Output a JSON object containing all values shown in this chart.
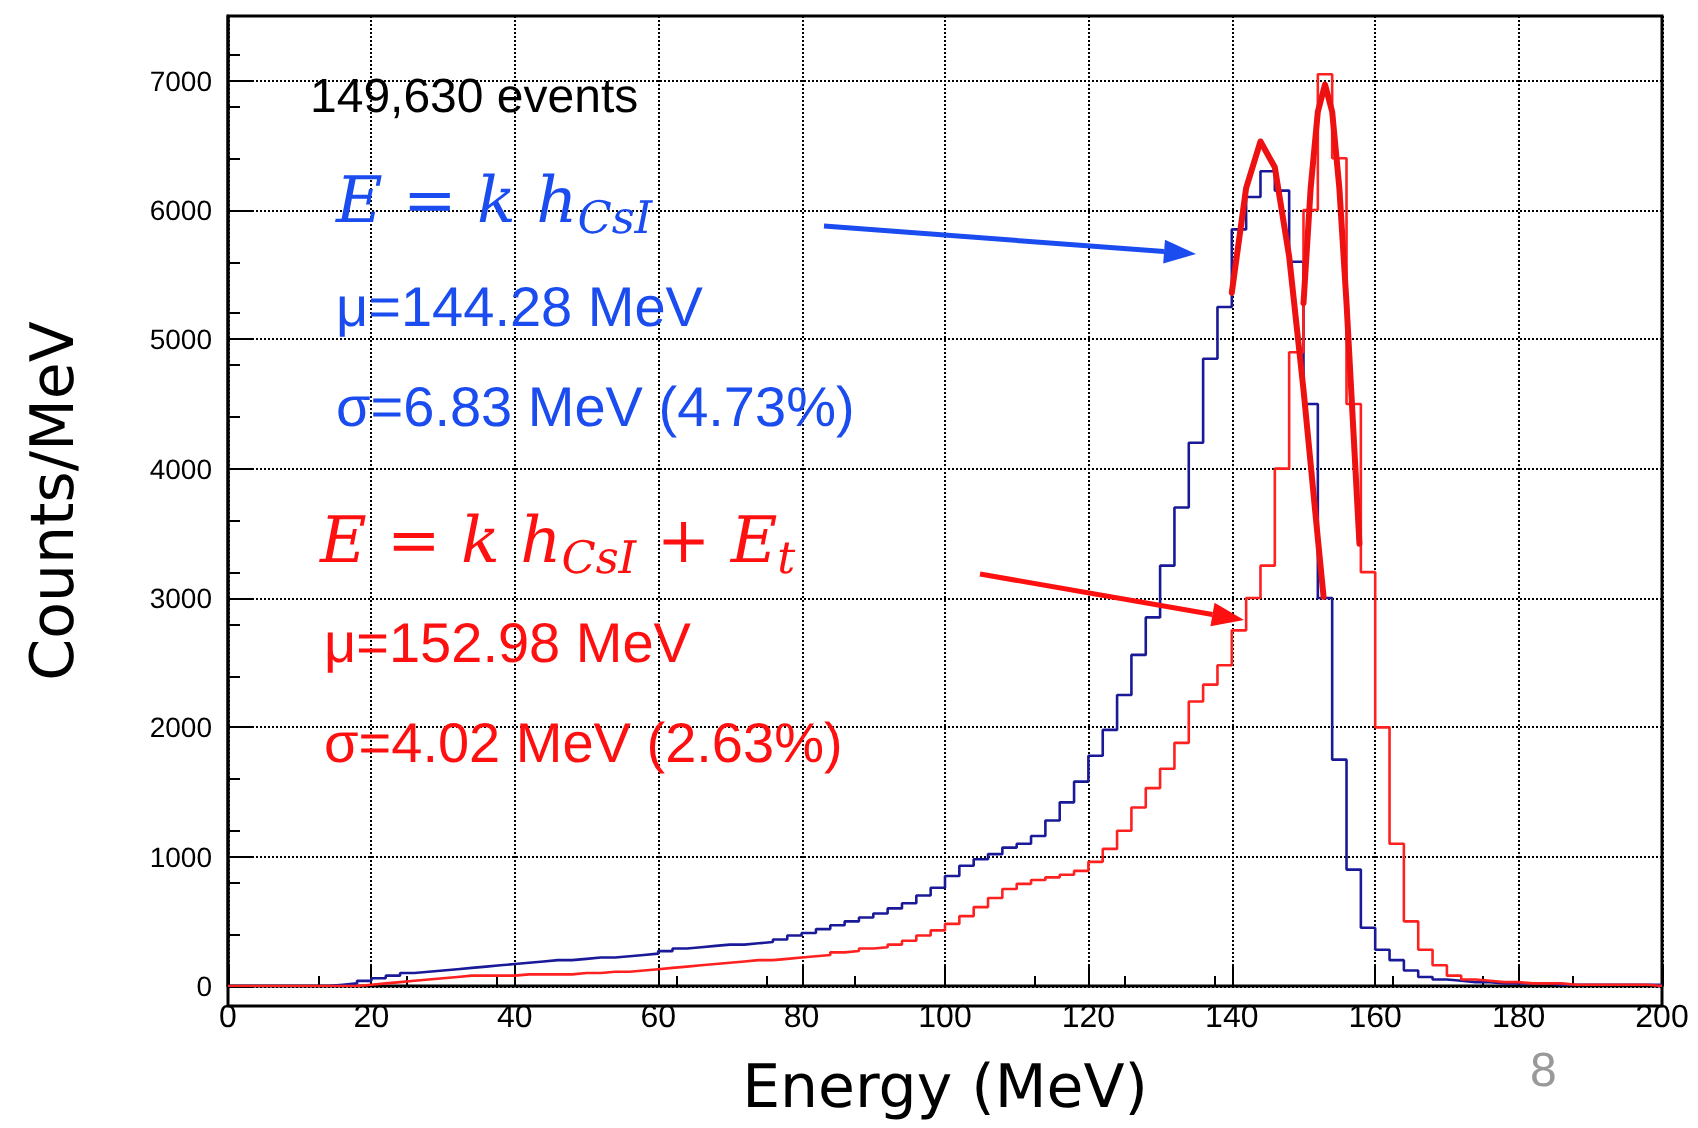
{
  "chart_data": {
    "type": "histogram",
    "xlabel": "Energy (MeV)",
    "ylabel": "Counts/MeV",
    "bins": [
      0,
      2,
      4,
      6,
      8,
      10,
      12,
      14,
      16,
      18,
      20,
      22,
      24,
      26,
      28,
      30,
      32,
      34,
      36,
      38,
      40,
      42,
      44,
      46,
      48,
      50,
      52,
      54,
      56,
      58,
      60,
      62,
      64,
      66,
      68,
      70,
      72,
      74,
      76,
      78,
      80,
      82,
      84,
      86,
      88,
      90,
      92,
      94,
      96,
      98,
      100,
      102,
      104,
      106,
      108,
      110,
      112,
      114,
      116,
      118,
      120,
      122,
      124,
      126,
      128,
      130,
      132,
      134,
      136,
      138,
      140,
      142,
      144,
      146,
      148,
      150,
      152,
      154,
      156,
      158,
      160,
      162,
      164,
      166,
      168,
      170,
      172,
      174,
      176,
      178,
      180,
      182,
      184,
      186,
      188,
      190,
      192,
      194,
      196,
      198,
      200
    ],
    "series": [
      {
        "color": "#1a1a99",
        "values": [
          0,
          0,
          0,
          0,
          0,
          0,
          0,
          10,
          20,
          40,
          60,
          80,
          100,
          110,
          120,
          130,
          140,
          150,
          160,
          170,
          180,
          190,
          200,
          200,
          210,
          220,
          220,
          230,
          240,
          250,
          270,
          290,
          300,
          310,
          320,
          320,
          330,
          340,
          360,
          390,
          410,
          440,
          470,
          500,
          530,
          560,
          600,
          640,
          700,
          760,
          850,
          930,
          980,
          1020,
          1070,
          1100,
          1160,
          1280,
          1420,
          1580,
          1780,
          1980,
          2250,
          2560,
          2850,
          3250,
          3700,
          4200,
          4850,
          5250,
          5850,
          6100,
          6300,
          6150,
          5600,
          4500,
          3000,
          1750,
          900,
          450,
          280,
          200,
          120,
          70,
          50,
          40,
          30,
          30,
          20,
          20,
          20,
          20,
          10,
          10,
          10,
          10,
          10,
          10,
          10,
          10
        ]
      },
      {
        "color": "#ff2020",
        "values": [
          0,
          0,
          0,
          0,
          0,
          0,
          0,
          0,
          0,
          10,
          20,
          30,
          40,
          50,
          60,
          70,
          80,
          80,
          80,
          80,
          90,
          90,
          90,
          90,
          100,
          100,
          110,
          110,
          120,
          130,
          140,
          150,
          160,
          170,
          180,
          190,
          200,
          200,
          210,
          220,
          230,
          240,
          260,
          270,
          290,
          300,
          320,
          350,
          390,
          430,
          480,
          540,
          610,
          680,
          750,
          790,
          820,
          840,
          860,
          890,
          960,
          1060,
          1200,
          1380,
          1530,
          1680,
          1880,
          2200,
          2330,
          2480,
          2750,
          3000,
          3250,
          4000,
          4900,
          6000,
          7050,
          6400,
          4500,
          3200,
          2000,
          1100,
          500,
          280,
          160,
          80,
          50,
          40,
          30,
          30,
          20,
          20,
          20,
          10,
          10,
          10,
          10,
          10,
          10,
          0
        ]
      },
      {
        "type": "line",
        "color": "#ee1111",
        "x": [
          140,
          142,
          144,
          146,
          148,
          150,
          152,
          152.8
        ],
        "values": [
          5360,
          6170,
          6530,
          6330,
          5640,
          4610,
          3460,
          3010
        ]
      },
      {
        "type": "line",
        "color": "#ee1111",
        "x": [
          150,
          151,
          152,
          153,
          154,
          155,
          156,
          157,
          157.8
        ],
        "values": [
          5280,
          6170,
          6760,
          6970,
          6760,
          6170,
          5280,
          4250,
          3420
        ]
      }
    ],
    "xlim": [
      0,
      200
    ],
    "ylim": [
      0,
      7500
    ],
    "xticks": [
      0,
      20,
      40,
      60,
      80,
      100,
      120,
      140,
      160,
      180,
      200
    ],
    "yticks": [
      0,
      1000,
      2000,
      3000,
      4000,
      5000,
      6000,
      7000
    ],
    "grid": true,
    "marker": "none",
    "annotations": [
      "149,630 events",
      "E = k h$_{CsI}$",
      "μ=144.28 MeV",
      "σ=6.83 MeV (4.73%)",
      "E = k h$_{CsI}$ + E$_{t}$",
      "μ=152.98 MeV",
      "σ=4.02 MeV (2.63%)",
      "8"
    ]
  }
}
